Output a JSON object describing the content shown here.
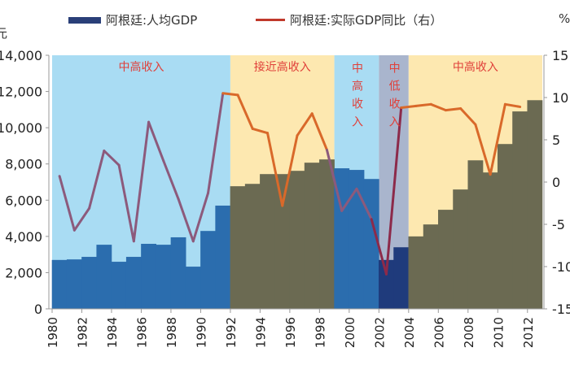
{
  "chart_data": {
    "type": "bar+line",
    "legend_placement": "top",
    "series": [
      {
        "name": "阿根廷:人均GDP",
        "type": "bar",
        "axis": "left",
        "values": [
          2700,
          2730,
          2870,
          3540,
          2600,
          2870,
          3590,
          3540,
          3950,
          2330,
          4300,
          5700,
          6770,
          6900,
          7440,
          7440,
          7620,
          8070,
          8250,
          7760,
          7670,
          7170,
          2700,
          3400,
          4000,
          4660,
          5470,
          6590,
          8200,
          7530,
          9100,
          10900,
          11520
        ]
      },
      {
        "name": "阿根廷:实际GDP同比（右）",
        "type": "line",
        "axis": "right",
        "values": [
          0.7,
          -5.7,
          -3.1,
          3.7,
          2.0,
          -7.0,
          7.1,
          2.5,
          -2.0,
          -7.0,
          -1.3,
          10.5,
          10.3,
          6.3,
          5.8,
          -2.8,
          5.5,
          8.1,
          3.8,
          -3.4,
          -0.8,
          -4.4,
          -10.9,
          8.8,
          9.0,
          9.2,
          8.5,
          8.7,
          6.8,
          0.9,
          9.2,
          8.9,
          null
        ]
      }
    ],
    "x": [
      1980,
      1981,
      1982,
      1983,
      1984,
      1985,
      1986,
      1987,
      1988,
      1989,
      1990,
      1991,
      1992,
      1993,
      1994,
      1995,
      1996,
      1997,
      1998,
      1999,
      2000,
      2001,
      2002,
      2003,
      2004,
      2005,
      2006,
      2007,
      2008,
      2009,
      2010,
      2011,
      2012
    ],
    "x_tick_labels": [
      "1980",
      "1982",
      "1984",
      "1986",
      "1988",
      "1990",
      "1992",
      "1994",
      "1996",
      "1998",
      "2000",
      "2002",
      "2004",
      "2006",
      "2008",
      "2010",
      "2012"
    ],
    "y_left": {
      "unit": "元",
      "range": [
        0,
        14000
      ],
      "tick_labels": [
        "0",
        "2,000",
        "4,000",
        "6,000",
        "8,000",
        "10,000",
        "12,000",
        "14,000"
      ]
    },
    "y_right": {
      "unit": "%",
      "range": [
        -15,
        15
      ],
      "tick_labels": [
        "-15",
        "-10",
        "-5",
        "0",
        "5",
        "10",
        "15"
      ]
    },
    "bands": [
      {
        "label": "中高收入",
        "from": 1980,
        "to": 1991,
        "bg": "#a9dcf3",
        "bar": "#2b6dae",
        "line": "#8c5a7c",
        "vertical": false
      },
      {
        "label": "接近高收入",
        "from": 1992,
        "to": 1998,
        "bg": "#fde8b0",
        "bar": "#6b6a52",
        "line": "#d9692a",
        "vertical": false
      },
      {
        "label": "中高收入",
        "from": 1999,
        "to": 2001,
        "bg": "#a9dcf3",
        "bar": "#2b6dae",
        "line": "#8c5a7c",
        "vertical": true
      },
      {
        "label": "中低收入",
        "from": 2002,
        "to": 2003,
        "bg": "#a9b5cd",
        "bar": "#1f3b7c",
        "line": "#8c2a4a",
        "vertical": true
      },
      {
        "label": "中高收入",
        "from": 2004,
        "to": 2012,
        "bg": "#fde8b0",
        "bar": "#6b6a52",
        "line": "#d9692a",
        "vertical": false
      }
    ],
    "band_label_color": "#e0403a",
    "grid": false
  }
}
